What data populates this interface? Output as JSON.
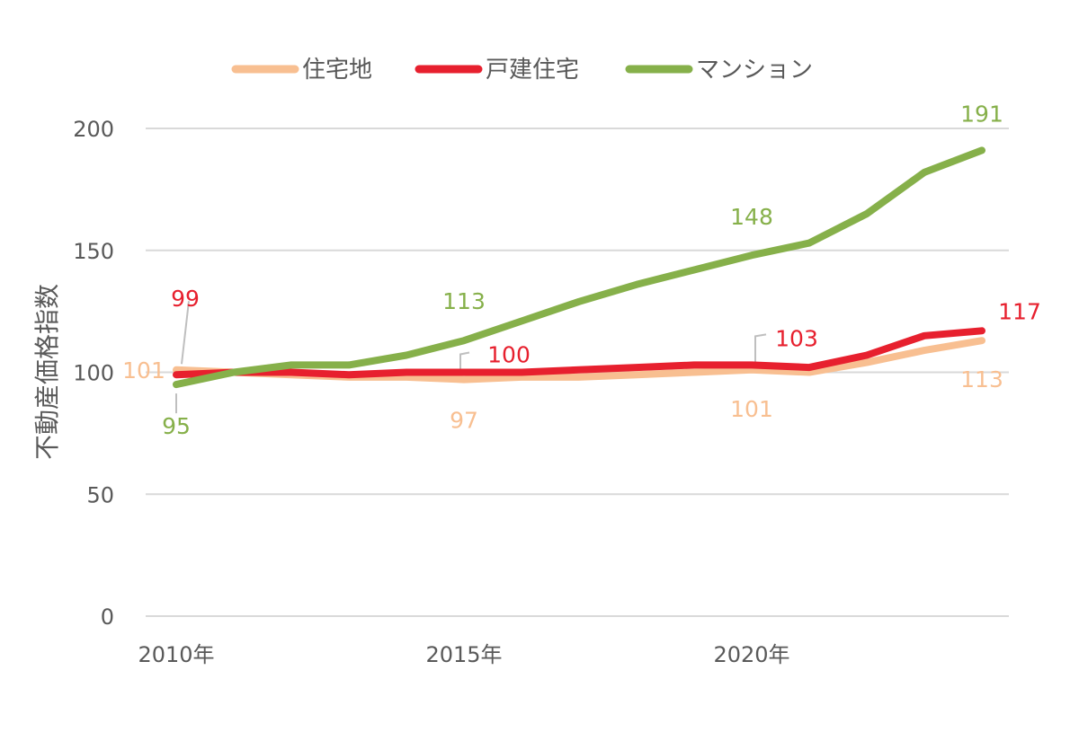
{
  "chart_data": {
    "type": "line",
    "title": "",
    "xlabel": "",
    "ylabel": "不動産価格指数",
    "x": [
      2010,
      2011,
      2012,
      2013,
      2014,
      2015,
      2016,
      2017,
      2018,
      2019,
      2020,
      2021,
      2022,
      2023,
      2024
    ],
    "x_tick_labels": [
      "2010年",
      "2015年",
      "2020年"
    ],
    "x_tick_values": [
      2010,
      2015,
      2020
    ],
    "y_ticks": [
      "0",
      "50",
      "100",
      "150",
      "200"
    ],
    "ylim": [
      0,
      200
    ],
    "grid": true,
    "legend_position": "top",
    "series": [
      {
        "name": "住宅地",
        "color": "#f8bf91",
        "values": [
          101,
          100,
          99,
          98,
          98,
          97,
          98,
          98,
          99,
          100,
          101,
          100,
          104,
          109,
          113
        ],
        "labels": [
          {
            "year": 2010,
            "text": "101"
          },
          {
            "year": 2015,
            "text": "97"
          },
          {
            "year": 2020,
            "text": "101"
          },
          {
            "year": 2024,
            "text": "113"
          }
        ]
      },
      {
        "name": "戸建住宅",
        "color": "#e7202e",
        "values": [
          99,
          100,
          100,
          99,
          100,
          100,
          100,
          101,
          102,
          103,
          103,
          102,
          107,
          115,
          117
        ],
        "labels": [
          {
            "year": 2010,
            "text": "99"
          },
          {
            "year": 2015,
            "text": "100"
          },
          {
            "year": 2020,
            "text": "103"
          },
          {
            "year": 2024,
            "text": "117"
          }
        ]
      },
      {
        "name": "マンション",
        "color": "#86b04a",
        "values": [
          95,
          100,
          103,
          103,
          107,
          113,
          121,
          129,
          136,
          142,
          148,
          153,
          165,
          182,
          191
        ],
        "labels": [
          {
            "year": 2010,
            "text": "95"
          },
          {
            "year": 2015,
            "text": "113"
          },
          {
            "year": 2020,
            "text": "148"
          },
          {
            "year": 2024,
            "text": "191"
          }
        ]
      }
    ]
  }
}
